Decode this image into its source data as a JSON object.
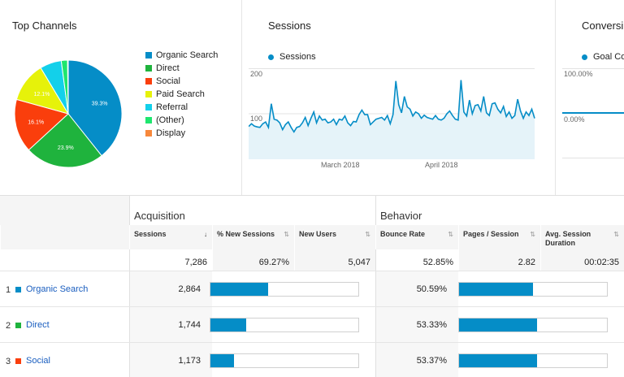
{
  "colors": {
    "organic": "#058dc7",
    "direct": "#1fb33d",
    "social": "#fa3e0c",
    "paid": "#e6f20a",
    "referral": "#13d0ea",
    "other": "#1ee66e",
    "display": "#f7883b",
    "sessions_line": "#058dc7"
  },
  "top_channels": {
    "title": "Top Channels",
    "legend": [
      {
        "label": "Organic Search",
        "color": "#058dc7"
      },
      {
        "label": "Direct",
        "color": "#1fb33d"
      },
      {
        "label": "Social",
        "color": "#fa3e0c"
      },
      {
        "label": "Paid Search",
        "color": "#e6f20a"
      },
      {
        "label": "Referral",
        "color": "#13d0ea"
      },
      {
        "label": "(Other)",
        "color": "#1ee66e"
      },
      {
        "label": "Display",
        "color": "#f7883b"
      }
    ]
  },
  "sessions": {
    "title": "Sessions",
    "legend": "Sessions",
    "y_200": "200",
    "y_100": "100",
    "x_mar": "March 2018",
    "x_apr": "April 2018"
  },
  "conversions": {
    "title": "Conversi",
    "legend": "Goal Co",
    "y_100": "100.00%",
    "y_0": "0.00%"
  },
  "chart_data": [
    {
      "type": "pie",
      "title": "Top Channels",
      "labels": [
        "Organic Search",
        "Direct",
        "Social",
        "Paid Search",
        "Referral",
        "(Other)",
        "Display"
      ],
      "values": [
        39.3,
        23.9,
        16.1,
        12.1,
        6.5,
        1.9,
        0.2
      ],
      "slice_labels": [
        "39.3%",
        "23.9%",
        "16.1%",
        "12.1%",
        "",
        "",
        ""
      ],
      "legend_position": "right"
    },
    {
      "type": "area",
      "title": "Sessions",
      "series": [
        {
          "name": "Sessions",
          "values": [
            72,
            78,
            73,
            71,
            70,
            78,
            82,
            70,
            122,
            88,
            86,
            80,
            65,
            76,
            82,
            70,
            60,
            70,
            72,
            80,
            92,
            74,
            90,
            104,
            80,
            95,
            86,
            88,
            80,
            82,
            88,
            76,
            88,
            86,
            95,
            80,
            74,
            83,
            82,
            98,
            108,
            98,
            98,
            76,
            82,
            88,
            90,
            92,
            86,
            96,
            78,
            98,
            172,
            120,
            102,
            138,
            115,
            110,
            95,
            104,
            100,
            90,
            97,
            92,
            90,
            88,
            96,
            88,
            86,
            90,
            100,
            106,
            96,
            88,
            86,
            174,
            104,
            95,
            130,
            100,
            118,
            120,
            106,
            138,
            102,
            96,
            122,
            124,
            110,
            102,
            116,
            94,
            104,
            90,
            96,
            132,
            106,
            90,
            104,
            96,
            110,
            90
          ]
        }
      ],
      "ylim": [
        0,
        200
      ],
      "x_ticks": [
        "March 2018",
        "April 2018"
      ],
      "grid": true
    },
    {
      "type": "line",
      "title": "Conversi",
      "series": [
        {
          "name": "Goal Co",
          "values": [
            0,
            0
          ]
        }
      ],
      "ylim": [
        0,
        100
      ],
      "y_ticks": [
        "100.00%",
        "0.00%"
      ]
    }
  ],
  "table": {
    "groups": [
      "Acquisition",
      "Behavior"
    ],
    "headers": {
      "sessions": "Sessions",
      "pct_new": "% New Sessions",
      "new_users": "New Users",
      "bounce": "Bounce Rate",
      "pages": "Pages / Session",
      "avg_dur": "Avg. Session Duration"
    },
    "totals": {
      "sessions": "7,286",
      "pct_new": "69.27%",
      "new_users": "5,047",
      "bounce": "52.85%",
      "pages": "2.82",
      "avg_dur": "00:02:35"
    },
    "rows": [
      {
        "num": "1",
        "channel": "Organic Search",
        "color": "#058dc7",
        "sessions": "2,864",
        "new_sessions_bar": 0.39,
        "bounce": "50.59%",
        "pages_bar": 0.5
      },
      {
        "num": "2",
        "channel": "Direct",
        "color": "#1fb33d",
        "sessions": "1,744",
        "new_sessions_bar": 0.24,
        "bounce": "53.33%",
        "pages_bar": 0.53
      },
      {
        "num": "3",
        "channel": "Social",
        "color": "#fa3e0c",
        "sessions": "1,173",
        "new_sessions_bar": 0.16,
        "bounce": "53.37%",
        "pages_bar": 0.53
      }
    ]
  }
}
